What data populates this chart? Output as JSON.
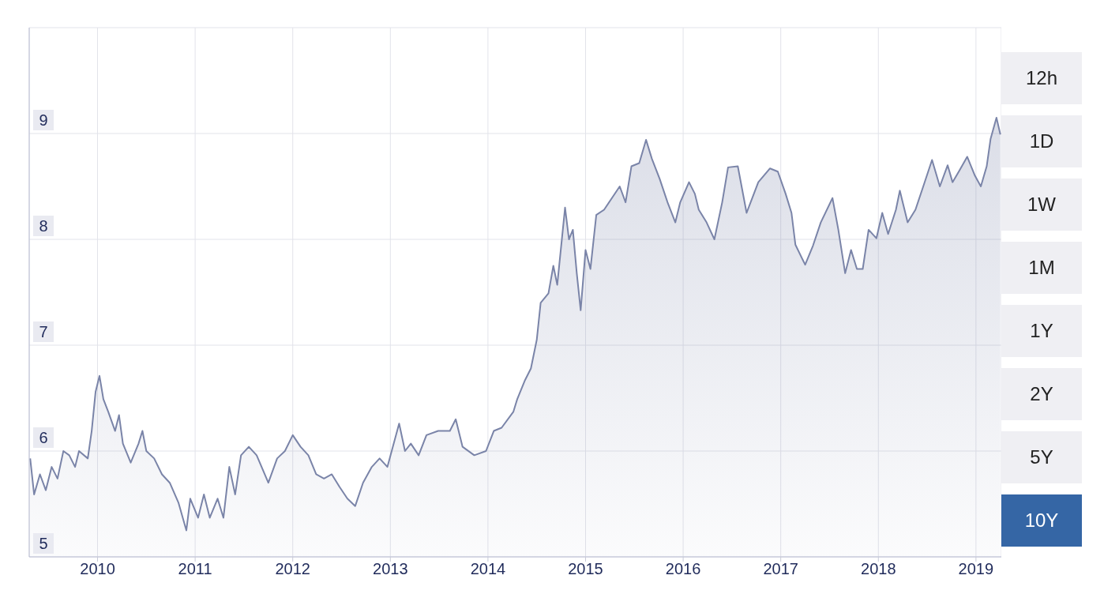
{
  "chart_data": {
    "type": "area",
    "xlim": [
      2009.3,
      2019.26
    ],
    "xticks": [
      2010,
      2011,
      2012,
      2013,
      2014,
      2015,
      2016,
      2017,
      2018,
      2019
    ],
    "ylim": [
      5,
      10
    ],
    "yticks": [
      5,
      6,
      7,
      8,
      9
    ],
    "grid": true,
    "legend": false,
    "series": [
      {
        "color": "#7a84a8",
        "x": [
          2009.31,
          2009.35,
          2009.41,
          2009.47,
          2009.53,
          2009.59,
          2009.65,
          2009.71,
          2009.77,
          2009.81,
          2009.9,
          2009.94,
          2009.98,
          2010.02,
          2010.06,
          2010.11,
          2010.18,
          2010.22,
          2010.26,
          2010.34,
          2010.42,
          2010.46,
          2010.5,
          2010.58,
          2010.66,
          2010.74,
          2010.83,
          2010.91,
          2010.95,
          2011.03,
          2011.09,
          2011.15,
          2011.23,
          2011.29,
          2011.35,
          2011.41,
          2011.47,
          2011.55,
          2011.63,
          2011.75,
          2011.84,
          2011.92,
          2012.0,
          2012.08,
          2012.16,
          2012.24,
          2012.32,
          2012.4,
          2012.48,
          2012.56,
          2012.64,
          2012.72,
          2012.81,
          2012.89,
          2012.97,
          2013.09,
          2013.15,
          2013.21,
          2013.29,
          2013.37,
          2013.49,
          2013.61,
          2013.67,
          2013.74,
          2013.86,
          2013.98,
          2014.06,
          2014.14,
          2014.26,
          2014.3,
          2014.38,
          2014.44,
          2014.5,
          2014.54,
          2014.62,
          2014.67,
          2014.71,
          2014.79,
          2014.83,
          2014.87,
          2014.91,
          2014.95,
          2015.0,
          2015.05,
          2015.11,
          2015.19,
          2015.27,
          2015.35,
          2015.41,
          2015.47,
          2015.55,
          2015.62,
          2015.68,
          2015.76,
          2015.84,
          2015.92,
          2015.97,
          2016.06,
          2016.12,
          2016.16,
          2016.24,
          2016.32,
          2016.4,
          2016.46,
          2016.56,
          2016.65,
          2016.77,
          2016.89,
          2016.97,
          2017.05,
          2017.11,
          2017.15,
          2017.25,
          2017.33,
          2017.41,
          2017.53,
          2017.59,
          2017.66,
          2017.72,
          2017.78,
          2017.84,
          2017.9,
          2017.98,
          2018.04,
          2018.1,
          2018.18,
          2018.22,
          2018.3,
          2018.38,
          2018.46,
          2018.55,
          2018.63,
          2018.71,
          2018.76,
          2018.83,
          2018.91,
          2018.99,
          2019.05,
          2019.11,
          2019.15,
          2019.21,
          2019.25
        ],
        "values": [
          5.93,
          5.59,
          5.78,
          5.63,
          5.85,
          5.74,
          6.0,
          5.96,
          5.85,
          6.0,
          5.93,
          6.19,
          6.56,
          6.71,
          6.49,
          6.37,
          6.19,
          6.34,
          6.07,
          5.89,
          6.07,
          6.19,
          6.0,
          5.93,
          5.78,
          5.7,
          5.51,
          5.25,
          5.55,
          5.37,
          5.59,
          5.37,
          5.55,
          5.37,
          5.85,
          5.59,
          5.96,
          6.04,
          5.96,
          5.7,
          5.93,
          6.0,
          6.15,
          6.04,
          5.96,
          5.78,
          5.74,
          5.78,
          5.66,
          5.55,
          5.48,
          5.7,
          5.85,
          5.93,
          5.85,
          6.26,
          6.0,
          6.07,
          5.96,
          6.15,
          6.19,
          6.19,
          6.3,
          6.04,
          5.96,
          6.0,
          6.19,
          6.22,
          6.37,
          6.49,
          6.67,
          6.78,
          7.05,
          7.4,
          7.49,
          7.75,
          7.57,
          8.3,
          8.0,
          8.09,
          7.68,
          7.33,
          7.9,
          7.72,
          8.23,
          8.28,
          8.39,
          8.5,
          8.35,
          8.69,
          8.72,
          8.94,
          8.76,
          8.57,
          8.35,
          8.16,
          8.35,
          8.54,
          8.43,
          8.28,
          8.16,
          8.0,
          8.35,
          8.68,
          8.69,
          8.25,
          8.54,
          8.67,
          8.64,
          8.43,
          8.25,
          7.95,
          7.76,
          7.94,
          8.16,
          8.39,
          8.09,
          7.68,
          7.9,
          7.72,
          7.72,
          8.09,
          8.01,
          8.25,
          8.05,
          8.28,
          8.46,
          8.16,
          8.28,
          8.5,
          8.75,
          8.5,
          8.7,
          8.54,
          8.65,
          8.78,
          8.6,
          8.5,
          8.69,
          8.95,
          9.15,
          8.99
        ]
      }
    ],
    "annotations": [
      "12h",
      "1D",
      "1W",
      "1M",
      "1Y",
      "2Y",
      "5Y",
      "10Y"
    ]
  }
}
